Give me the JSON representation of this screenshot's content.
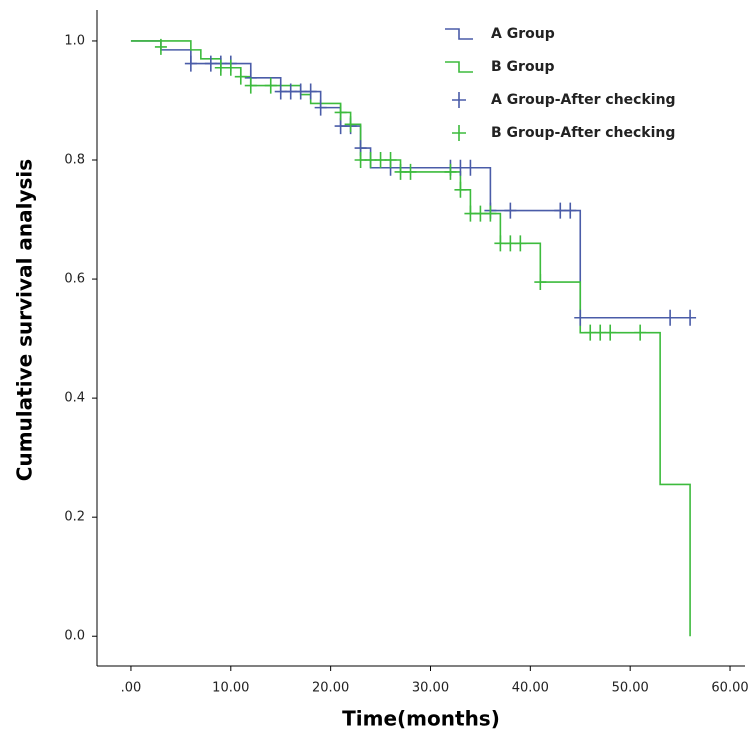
{
  "chart_data": {
    "type": "step",
    "x_label": "Time(months)",
    "y_label": "Cumulative survival analysis",
    "xlim": [
      -3.4,
      61.5
    ],
    "ylim": [
      -0.05,
      1.052
    ],
    "xticks": [
      {
        "value": 0,
        "label": ".00"
      },
      {
        "value": 10,
        "label": "10.00"
      },
      {
        "value": 20,
        "label": "20.00"
      },
      {
        "value": 30,
        "label": "30.00"
      },
      {
        "value": 40,
        "label": "40.00"
      },
      {
        "value": 50,
        "label": "50.00"
      },
      {
        "value": 60,
        "label": "60.00"
      }
    ],
    "yticks": [
      {
        "value": 0,
        "label": "0.0"
      },
      0.2,
      0.4,
      0.6,
      0.8,
      {
        "value": 1,
        "label": "1.0"
      }
    ],
    "legend": "top-right",
    "series": [
      {
        "name": "A Group",
        "color": "#4a5ca8",
        "marker": "step",
        "x": [
          0,
          3,
          6,
          12,
          15,
          19,
          21,
          23,
          24,
          36,
          45,
          56
        ],
        "values": [
          1.0,
          0.985,
          0.962,
          0.938,
          0.915,
          0.888,
          0.857,
          0.82,
          0.787,
          0.715,
          0.535,
          0.535
        ]
      },
      {
        "name": "B Group",
        "color": "#3dbb3d",
        "marker": "step",
        "x": [
          0,
          6,
          7,
          9,
          11,
          12,
          17,
          18,
          21,
          22,
          23,
          27,
          33,
          34,
          37,
          41,
          45,
          53,
          56
        ],
        "values": [
          1.0,
          0.985,
          0.97,
          0.955,
          0.94,
          0.925,
          0.91,
          0.895,
          0.88,
          0.86,
          0.8,
          0.78,
          0.75,
          0.71,
          0.66,
          0.595,
          0.51,
          0.255,
          0.0
        ]
      },
      {
        "name": "A Group-After checking",
        "color": "#4a5ca8",
        "marker": "plus",
        "x": [
          6,
          8,
          9,
          10,
          12,
          15,
          16,
          17,
          18,
          19,
          21,
          22,
          23,
          26,
          32,
          33,
          34,
          36,
          38,
          43,
          44,
          45,
          54,
          56
        ],
        "values": [
          0.962,
          0.962,
          0.962,
          0.962,
          0.938,
          0.915,
          0.915,
          0.915,
          0.915,
          0.888,
          0.857,
          0.857,
          0.82,
          0.787,
          0.787,
          0.787,
          0.787,
          0.715,
          0.715,
          0.715,
          0.715,
          0.535,
          0.535,
          0.535
        ]
      },
      {
        "name": "B Group-After checking",
        "color": "#3dbb3d",
        "marker": "plus",
        "x": [
          3,
          9,
          10,
          11,
          12,
          14,
          21,
          22,
          23,
          24,
          25,
          26,
          27,
          28,
          32,
          33,
          34,
          35,
          36,
          37,
          38,
          39,
          41,
          46,
          47,
          48,
          51
        ],
        "values": [
          0.99,
          0.955,
          0.955,
          0.94,
          0.925,
          0.925,
          0.88,
          0.86,
          0.8,
          0.8,
          0.8,
          0.8,
          0.78,
          0.78,
          0.78,
          0.75,
          0.71,
          0.71,
          0.71,
          0.66,
          0.66,
          0.66,
          0.595,
          0.51,
          0.51,
          0.51,
          0.51
        ]
      }
    ]
  }
}
